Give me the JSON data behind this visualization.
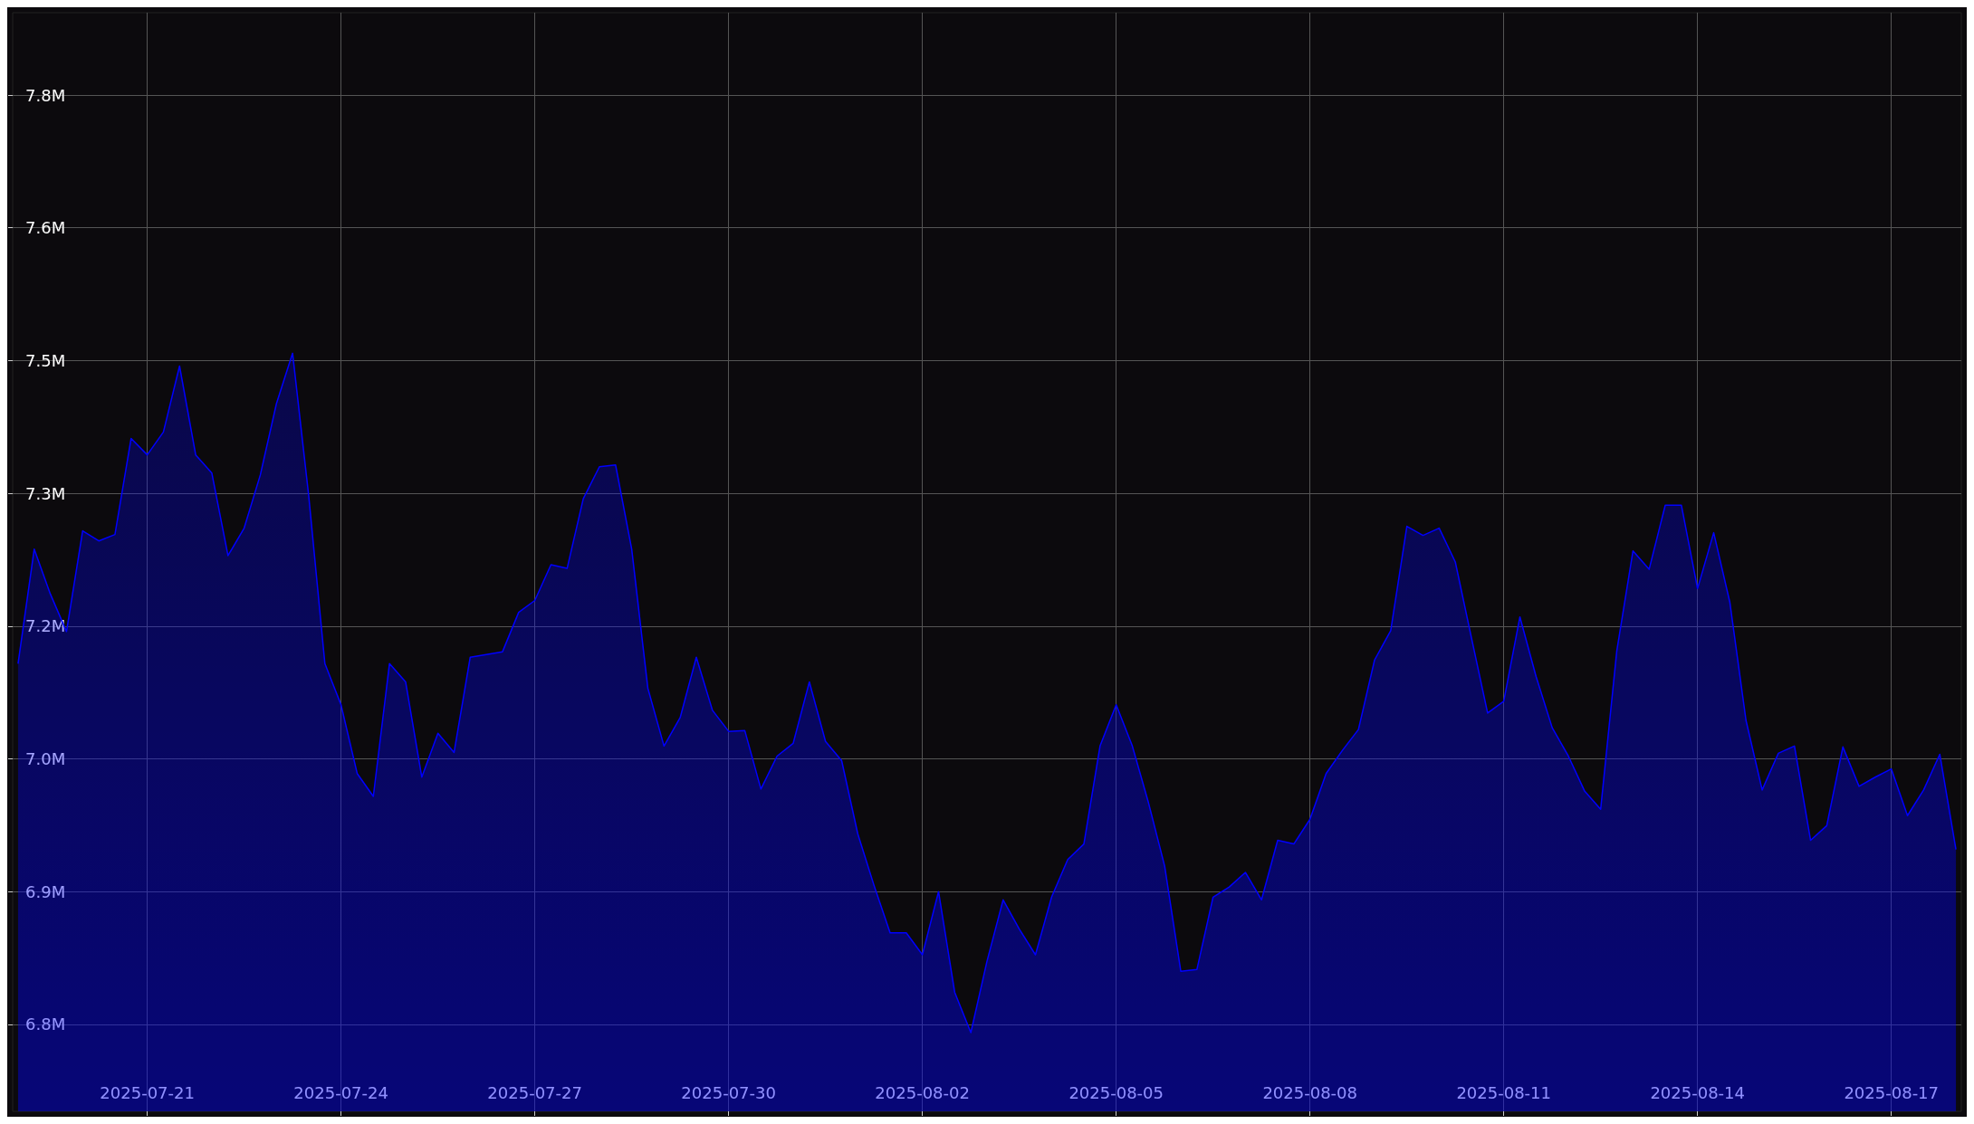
{
  "chart_data": {
    "type": "area",
    "color": "#0000ff",
    "grid": true,
    "marker": "none",
    "line_style": "solid",
    "x": [
      "2025-07-19T00:00",
      "2025-07-19T06:00",
      "2025-07-19T12:00",
      "2025-07-19T18:00",
      "2025-07-20T00:00",
      "2025-07-20T06:00",
      "2025-07-20T12:00",
      "2025-07-20T18:00",
      "2025-07-21T00:00",
      "2025-07-21T06:00",
      "2025-07-21T12:00",
      "2025-07-21T18:00",
      "2025-07-22T00:00",
      "2025-07-22T06:00",
      "2025-07-22T12:00",
      "2025-07-22T18:00",
      "2025-07-23T00:00",
      "2025-07-23T06:00",
      "2025-07-23T12:00",
      "2025-07-23T18:00",
      "2025-07-24T00:00",
      "2025-07-24T06:00",
      "2025-07-24T12:00",
      "2025-07-24T18:00",
      "2025-07-25T00:00",
      "2025-07-25T06:00",
      "2025-07-25T12:00",
      "2025-07-25T18:00",
      "2025-07-26T00:00",
      "2025-07-26T06:00",
      "2025-07-26T12:00",
      "2025-07-26T18:00",
      "2025-07-27T00:00",
      "2025-07-27T06:00",
      "2025-07-27T12:00",
      "2025-07-27T18:00",
      "2025-07-28T00:00",
      "2025-07-28T06:00",
      "2025-07-28T12:00",
      "2025-07-28T18:00",
      "2025-07-29T00:00",
      "2025-07-29T06:00",
      "2025-07-29T12:00",
      "2025-07-29T18:00",
      "2025-07-30T00:00",
      "2025-07-30T06:00",
      "2025-07-30T12:00",
      "2025-07-30T18:00",
      "2025-07-31T00:00",
      "2025-07-31T06:00",
      "2025-07-31T12:00",
      "2025-07-31T18:00",
      "2025-08-01T00:00",
      "2025-08-01T06:00",
      "2025-08-01T12:00",
      "2025-08-01T18:00",
      "2025-08-02T00:00",
      "2025-08-02T06:00",
      "2025-08-02T12:00",
      "2025-08-02T18:00",
      "2025-08-03T00:00",
      "2025-08-03T06:00",
      "2025-08-03T12:00",
      "2025-08-03T18:00",
      "2025-08-04T00:00",
      "2025-08-04T06:00",
      "2025-08-04T12:00",
      "2025-08-04T18:00",
      "2025-08-05T00:00",
      "2025-08-05T06:00",
      "2025-08-05T12:00",
      "2025-08-05T18:00",
      "2025-08-06T00:00",
      "2025-08-06T06:00",
      "2025-08-06T12:00",
      "2025-08-06T18:00",
      "2025-08-07T00:00",
      "2025-08-07T06:00",
      "2025-08-07T12:00",
      "2025-08-07T18:00",
      "2025-08-08T00:00",
      "2025-08-08T06:00",
      "2025-08-08T12:00",
      "2025-08-08T18:00",
      "2025-08-09T00:00",
      "2025-08-09T06:00",
      "2025-08-09T12:00",
      "2025-08-09T18:00",
      "2025-08-10T00:00",
      "2025-08-10T06:00",
      "2025-08-10T12:00",
      "2025-08-10T18:00",
      "2025-08-11T00:00",
      "2025-08-11T06:00",
      "2025-08-11T12:00",
      "2025-08-11T18:00",
      "2025-08-12T00:00",
      "2025-08-12T06:00",
      "2025-08-12T12:00",
      "2025-08-12T18:00",
      "2025-08-13T00:00",
      "2025-08-13T06:00",
      "2025-08-13T12:00",
      "2025-08-13T18:00",
      "2025-08-14T00:00",
      "2025-08-14T06:00",
      "2025-08-14T12:00",
      "2025-08-14T18:00",
      "2025-08-15T00:00",
      "2025-08-15T06:00",
      "2025-08-15T12:00",
      "2025-08-15T18:00",
      "2025-08-16T00:00",
      "2025-08-16T06:00",
      "2025-08-16T12:00",
      "2025-08-16T18:00",
      "2025-08-17T00:00",
      "2025-08-17T06:00",
      "2025-08-17T12:00",
      "2025-08-17T18:00",
      "2025-08-18T00:00"
    ],
    "values": [
      7.149,
      7.274,
      7.225,
      7.184,
      7.294,
      7.283,
      7.29,
      7.395,
      7.377,
      7.402,
      7.474,
      7.377,
      7.357,
      7.267,
      7.297,
      7.355,
      7.433,
      7.488,
      7.332,
      7.149,
      7.104,
      7.029,
      7.004,
      7.149,
      7.129,
      7.025,
      7.073,
      7.052,
      7.156,
      7.159,
      7.162,
      7.205,
      7.218,
      7.257,
      7.253,
      7.329,
      7.364,
      7.366,
      7.274,
      7.122,
      7.059,
      7.09,
      7.156,
      7.098,
      7.075,
      7.076,
      7.012,
      7.048,
      7.062,
      7.129,
      7.064,
      7.043,
      6.963,
      6.907,
      6.855,
      6.855,
      6.831,
      6.9,
      6.79,
      6.746,
      6.824,
      6.891,
      6.859,
      6.831,
      6.894,
      6.935,
      6.952,
      7.059,
      7.104,
      7.059,
      6.997,
      6.928,
      6.813,
      6.815,
      6.894,
      6.905,
      6.921,
      6.891,
      6.956,
      6.952,
      6.979,
      7.029,
      7.054,
      7.077,
      7.153,
      7.185,
      7.299,
      7.289,
      7.297,
      7.26,
      7.177,
      7.095,
      7.108,
      7.2,
      7.135,
      7.079,
      7.048,
      7.01,
      6.99,
      7.163,
      7.272,
      7.252,
      7.322,
      7.322,
      7.231,
      7.292,
      7.216,
      7.087,
      7.011,
      7.051,
      7.059,
      6.956,
      6.972,
      7.058,
      7.015,
      7.025,
      7.034,
      6.983,
      7.011,
      7.05,
      6.946
    ],
    "xlim": [
      "2025-07-18T22:00",
      "2025-08-18T02:00"
    ],
    "xticks": [
      "2025-07-21",
      "2025-07-24",
      "2025-07-27",
      "2025-07-30",
      "2025-08-02",
      "2025-08-05",
      "2025-08-08",
      "2025-08-11",
      "2025-08-14",
      "2025-08-17"
    ],
    "ylim": [
      6.66,
      7.86
    ],
    "yticks": [
      {
        "value": 6.755,
        "label": "6.8M"
      },
      {
        "value": 6.9,
        "label": "6.9M"
      },
      {
        "value": 7.045,
        "label": "7.0M"
      },
      {
        "value": 7.19,
        "label": "7.2M"
      },
      {
        "value": 7.335,
        "label": "7.3M"
      },
      {
        "value": 7.48,
        "label": "7.5M"
      },
      {
        "value": 7.625,
        "label": "7.6M"
      },
      {
        "value": 7.77,
        "label": "7.8M"
      }
    ]
  }
}
